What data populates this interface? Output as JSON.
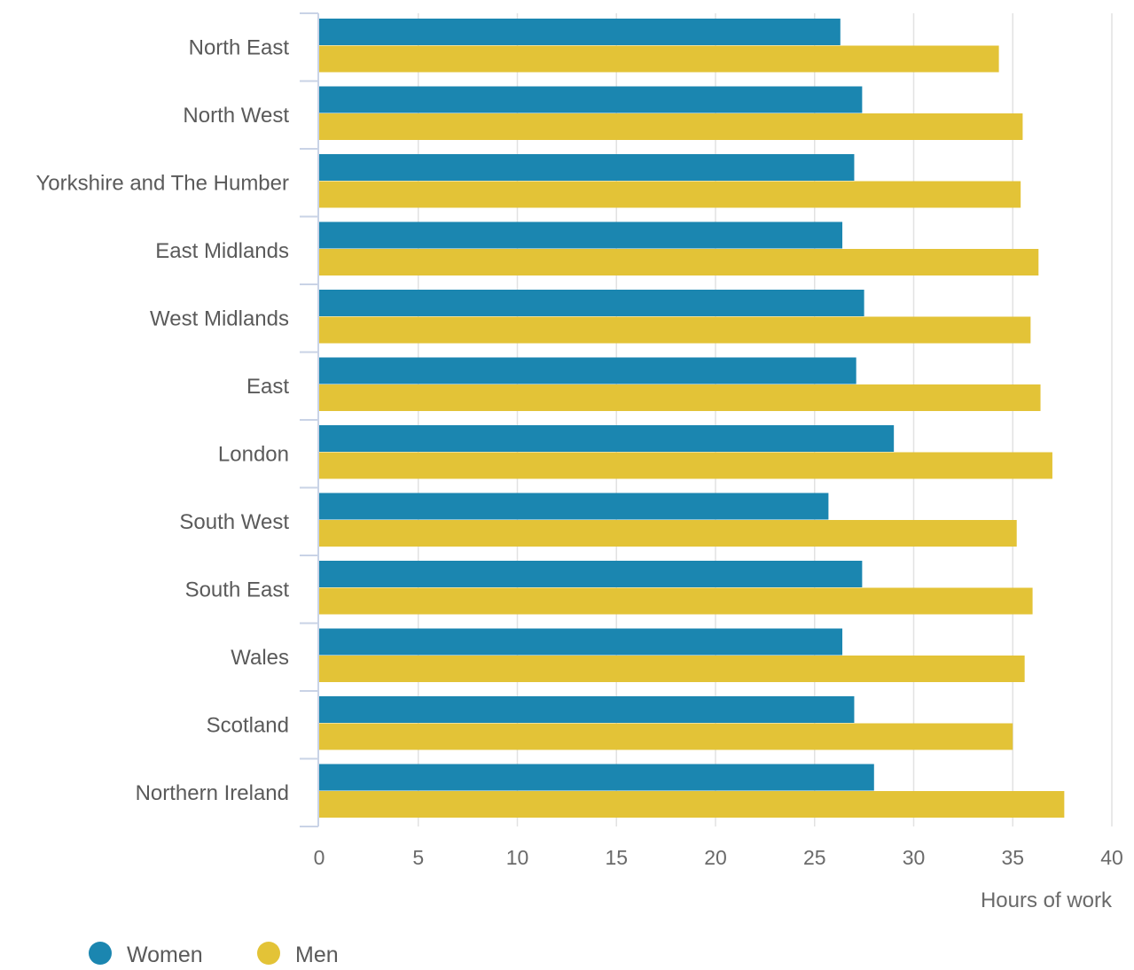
{
  "chart_data": {
    "type": "bar",
    "orientation": "horizontal",
    "categories": [
      "North East",
      "North West",
      "Yorkshire and The Humber",
      "East Midlands",
      "West Midlands",
      "East",
      "London",
      "South West",
      "South East",
      "Wales",
      "Scotland",
      "Northern Ireland"
    ],
    "series": [
      {
        "name": "Women",
        "color": "#1b86b0",
        "values": [
          26.3,
          27.4,
          27.0,
          26.4,
          27.5,
          27.1,
          29.0,
          25.7,
          27.4,
          26.4,
          27.0,
          28.0
        ]
      },
      {
        "name": "Men",
        "color": "#e3c337",
        "values": [
          34.3,
          35.5,
          35.4,
          36.3,
          35.9,
          36.4,
          37.0,
          35.2,
          36.0,
          35.6,
          35.0,
          37.6
        ]
      }
    ],
    "xlabel": "Hours of work",
    "xlim": [
      0,
      40
    ],
    "xticks": [
      0,
      5,
      10,
      15,
      20,
      25,
      30,
      35,
      40
    ],
    "grid": true,
    "legend_position": "bottom-left"
  }
}
